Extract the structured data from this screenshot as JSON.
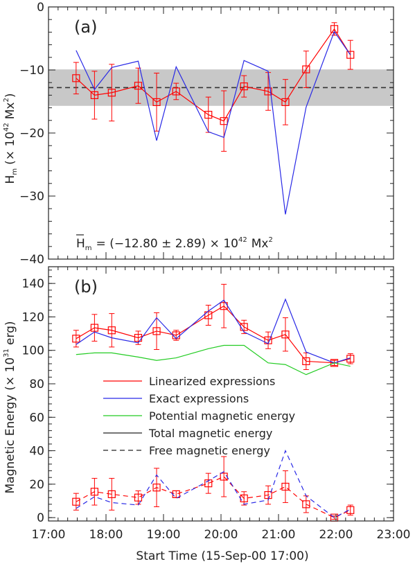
{
  "chart_data": [
    {
      "panel_label": "(a)",
      "type": "line",
      "ylabel_main": "H",
      "ylabel_sub": "m",
      "ylabel_rest": "(× 10",
      "ylabel_exp": "42",
      "ylabel_unit": "Mx",
      "ylabel_unit_exp": "2",
      "ylabel_close": ")",
      "xlim": [
        17.0,
        23.0
      ],
      "ylim": [
        -40,
        0
      ],
      "yticks": [
        0,
        -10,
        -20,
        -30,
        -40
      ],
      "ytick_labels": [
        "0",
        "−10",
        "−20",
        "−30",
        "−40"
      ],
      "mean_value": -12.8,
      "mean_band": [
        -15.69,
        -9.91
      ],
      "annotation": {
        "lhs": "H",
        "lhs_sub": "m",
        "eq": "= (−12.80 ± 2.89) × 10",
        "exp": "42",
        "unit": "Mx",
        "unit_exp": "2"
      },
      "series": [
        {
          "label": "Linearized expressions",
          "color": "#ff0000",
          "linestyle": "solid",
          "markers": true,
          "x": [
            17.48,
            17.8,
            18.1,
            18.56,
            18.88,
            19.22,
            19.78,
            20.05,
            20.4,
            20.82,
            21.12,
            21.48,
            21.97,
            22.25
          ],
          "y": [
            -11.3,
            -14.0,
            -13.6,
            -12.5,
            -15.1,
            -13.4,
            -17.1,
            -18.1,
            -12.6,
            -13.4,
            -15.1,
            -9.9,
            -3.5,
            -7.6
          ],
          "err": [
            2.5,
            3.8,
            4.5,
            2.8,
            4.6,
            1.3,
            2.8,
            4.8,
            1.7,
            3.0,
            3.6,
            2.9,
            1.0,
            2.3
          ]
        },
        {
          "label": "Exact expressions",
          "color": "#2828e6",
          "linestyle": "solid",
          "markers": false,
          "x": [
            17.48,
            17.8,
            18.1,
            18.56,
            18.88,
            19.22,
            19.78,
            20.05,
            20.4,
            20.82,
            21.12,
            21.48,
            21.97,
            22.25
          ],
          "y": [
            -6.9,
            -13.1,
            -9.6,
            -8.6,
            -21.2,
            -9.5,
            -19.8,
            -20.7,
            -8.5,
            -10.2,
            -32.9,
            -15.9,
            -3.9,
            -7.6
          ]
        }
      ]
    },
    {
      "panel_label": "(b)",
      "type": "line",
      "ylabel_main": "Magnetic Energy",
      "ylabel_rest": "(× 10",
      "ylabel_exp": "31",
      "ylabel_unit": "erg)",
      "xlabel": "Start Time (15-Sep-00 17:00)",
      "xlim": [
        17.0,
        23.0
      ],
      "xticks": [
        17,
        18,
        19,
        20,
        21,
        22,
        23
      ],
      "xtick_labels": [
        "17:00",
        "18:00",
        "19:00",
        "20:00",
        "21:00",
        "22:00",
        "23:00"
      ],
      "ylim": [
        -2,
        150
      ],
      "yticks": [
        0,
        20,
        40,
        60,
        80,
        100,
        120,
        140
      ],
      "ytick_labels": [
        "0",
        "20",
        "40",
        "60",
        "80",
        "100",
        "120",
        "140"
      ],
      "legend": [
        {
          "label": "Linearized expressions",
          "color": "#ff0000",
          "linestyle": "solid"
        },
        {
          "label": "Exact expressions",
          "color": "#2828e6",
          "linestyle": "solid"
        },
        {
          "label": "Potential magnetic energy",
          "color": "#22cc22",
          "linestyle": "solid"
        },
        {
          "label": "Total magnetic energy",
          "color": "#222222",
          "linestyle": "solid"
        },
        {
          "label": "Free magnetic energy",
          "color": "#222222",
          "linestyle": "dashed"
        }
      ],
      "legend_position": "center",
      "series": [
        {
          "label": "Linearized total",
          "color": "#ff0000",
          "linestyle": "solid",
          "markers": true,
          "x": [
            17.48,
            17.8,
            18.1,
            18.56,
            18.88,
            19.22,
            19.78,
            20.05,
            20.4,
            20.82,
            21.12,
            21.48,
            21.97,
            22.25
          ],
          "y": [
            107.0,
            113.5,
            112.0,
            107.5,
            111.5,
            109.0,
            121.0,
            126.5,
            114.0,
            106.0,
            109.5,
            93.5,
            92.5,
            95.0
          ],
          "err": [
            5.0,
            8.0,
            10.0,
            4.0,
            11.0,
            3.0,
            6.0,
            13.0,
            4.0,
            5.0,
            10.0,
            5.0,
            1.5,
            3.0
          ]
        },
        {
          "label": "Exact total",
          "color": "#2828e6",
          "linestyle": "solid",
          "markers": false,
          "x": [
            17.48,
            17.8,
            18.1,
            18.56,
            18.88,
            19.22,
            19.78,
            20.05,
            20.4,
            20.82,
            21.12,
            21.48,
            21.97,
            22.25
          ],
          "y": [
            103.5,
            111.0,
            107.5,
            104.5,
            119.5,
            107.0,
            123.5,
            130.0,
            111.0,
            104.0,
            130.5,
            99.0,
            92.5,
            95.5
          ]
        },
        {
          "label": "Potential",
          "color": "#22cc22",
          "linestyle": "solid",
          "markers": false,
          "x": [
            17.48,
            17.8,
            18.1,
            18.56,
            18.88,
            19.22,
            19.78,
            20.05,
            20.4,
            20.82,
            21.12,
            21.48,
            21.97,
            22.25
          ],
          "y": [
            97.5,
            98.5,
            98.5,
            96.0,
            94.0,
            95.5,
            101.0,
            103.0,
            103.0,
            92.5,
            91.5,
            85.5,
            92.5,
            90.5
          ]
        },
        {
          "label": "Linearized free",
          "color": "#ff0000",
          "linestyle": "dashed",
          "markers": true,
          "x": [
            17.48,
            17.8,
            18.1,
            18.56,
            18.88,
            19.22,
            19.78,
            20.05,
            20.4,
            20.82,
            21.12,
            21.48,
            21.97,
            22.25
          ],
          "y": [
            9.5,
            15.5,
            14.0,
            12.0,
            18.0,
            14.0,
            20.5,
            24.5,
            11.5,
            13.5,
            18.5,
            8.0,
            0.0,
            4.5
          ],
          "err": [
            5.0,
            8.0,
            9.5,
            4.0,
            11.5,
            2.0,
            6.0,
            12.0,
            4.0,
            5.5,
            9.5,
            5.0,
            1.0,
            3.0
          ]
        },
        {
          "label": "Exact free",
          "color": "#2828e6",
          "linestyle": "dashed",
          "markers": false,
          "x": [
            17.48,
            17.8,
            18.1,
            18.56,
            18.88,
            19.22,
            19.78,
            20.05,
            20.4,
            20.82,
            21.12,
            21.48,
            21.97,
            22.25
          ],
          "y": [
            5.5,
            12.5,
            9.0,
            7.5,
            25.5,
            11.5,
            22.0,
            27.5,
            8.0,
            10.5,
            40.0,
            13.0,
            0.0,
            5.0
          ]
        }
      ]
    }
  ]
}
